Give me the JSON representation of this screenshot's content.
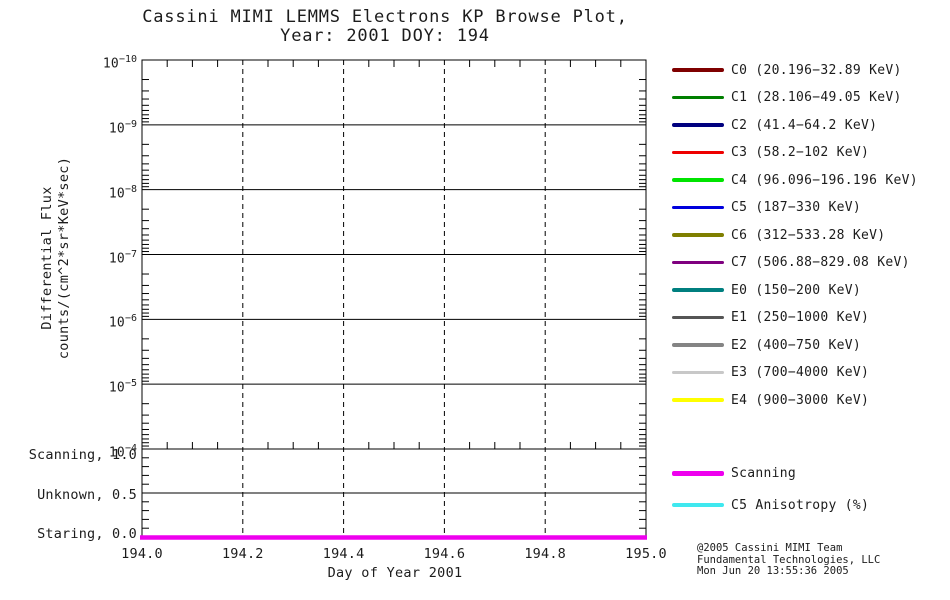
{
  "title": {
    "line1": "Cassini MIMI LEMMS Electrons KP Browse Plot,",
    "line2": "Year: 2001 DOY: 194"
  },
  "chart_data": {
    "type": "line",
    "title": "Cassini MIMI LEMMS Electrons KP Browse Plot, Year: 2001 DOY: 194",
    "x": {
      "label": "Day of Year 2001",
      "min": 194.0,
      "max": 195.0,
      "ticks": [
        194.0,
        194.2,
        194.4,
        194.6,
        194.8,
        195.0
      ],
      "tick_labels": [
        "194.0",
        "194.2",
        "194.4",
        "194.6",
        "194.8",
        "195.0"
      ],
      "minor_step": 0.05
    },
    "y_flux": {
      "label_line1": "Differential Flux",
      "label_line2": "counts/(cm^2*sr*KeV*sec)",
      "scale": "log",
      "top_exponent": -10,
      "bottom_exponent": -4,
      "decade_exponents": [
        -10,
        -9,
        -8,
        -7,
        -6,
        -5,
        -4
      ]
    },
    "y_mode": {
      "ticks": [
        {
          "label": "Scanning, 1.0",
          "value": 1.0
        },
        {
          "label": "Unknown, 0.5",
          "value": 0.5
        },
        {
          "label": "Staring, 0.0",
          "value": 0.0
        }
      ],
      "minor_step": 0.1
    },
    "grid": {
      "horizontal": "solid line at each decade and at mode 0.5",
      "vertical": "dashed lines at 0.2-day major ticks"
    },
    "series": [
      {
        "name": "Scanning",
        "axis": "y_mode",
        "color": "#EE00EE",
        "width": 4.5,
        "x": [
          194.0,
          195.0
        ],
        "y": [
          0.0,
          0.0
        ]
      }
    ],
    "note": "No electron flux channel data plotted for this day; only the pointing-mode line at 0.0 (Staring) is drawn."
  },
  "legend": {
    "entries": [
      {
        "channel": "C0",
        "label": "C0 (20.196−32.89 KeV)",
        "color": "#7F0000"
      },
      {
        "channel": "C1",
        "label": "C1 (28.106−49.05 KeV)",
        "color": "#007F00"
      },
      {
        "channel": "C2",
        "label": "C2 (41.4−64.2 KeV)",
        "color": "#00007F"
      },
      {
        "channel": "C3",
        "label": "C3 (58.2−102 KeV)",
        "color": "#EE0000"
      },
      {
        "channel": "C4",
        "label": "C4 (96.096−196.196 KeV)",
        "color": "#00E400"
      },
      {
        "channel": "C5",
        "label": "C5 (187−330 KeV)",
        "color": "#0000DD"
      },
      {
        "channel": "C6",
        "label": "C6 (312−533.28 KeV)",
        "color": "#7F7F00"
      },
      {
        "channel": "C7",
        "label": "C7 (506.88−829.08 KeV)",
        "color": "#7F007F"
      },
      {
        "channel": "E0",
        "label": "E0 (150−200 KeV)",
        "color": "#007F7F"
      },
      {
        "channel": "E1",
        "label": "E1 (250−1000 KeV)",
        "color": "#555555"
      },
      {
        "channel": "E2",
        "label": "E2 (400−750 KeV)",
        "color": "#848484"
      },
      {
        "channel": "E3",
        "label": "E3 (700−4000 KeV)",
        "color": "#C8C8C8"
      },
      {
        "channel": "E4",
        "label": "E4 (900−3000 KeV)",
        "color": "#FFFF00"
      }
    ]
  },
  "legend2": {
    "entries": [
      {
        "label": "Scanning",
        "color": "#EE00EE",
        "thickness": 5
      },
      {
        "label": "C5 Anisotropy (%)",
        "color": "#3FE8EF",
        "thickness": 4
      }
    ]
  },
  "credit": {
    "line1": "@2005 Cassini MIMI Team",
    "line2": "Fundamental Technologies, LLC",
    "line3": "Mon Jun 20 13:55:36 2005"
  }
}
